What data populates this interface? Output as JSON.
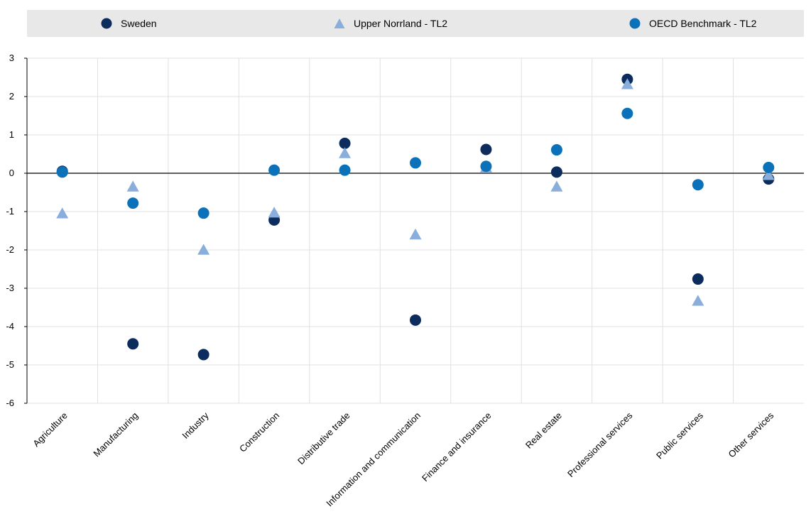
{
  "colors": {
    "sweden": "#0c2c5e",
    "upper_norrland": "#8aaedb",
    "oecd": "#0b72ba",
    "grid": "#e0e0e0",
    "legend_bg": "#e8e8e8"
  },
  "legend": {
    "items": [
      {
        "label": "Sweden",
        "marker": "circle"
      },
      {
        "label": "Upper Norrland - TL2",
        "marker": "triangle"
      },
      {
        "label": "OECD Benchmark - TL2",
        "marker": "circle"
      }
    ],
    "placement": "top"
  },
  "chart_data": {
    "type": "scatter",
    "categories": [
      "Agriculture",
      "Manufacturing",
      "Industry",
      "Construction",
      "Distributive trade",
      "Information and communication",
      "Finance and insurance",
      "Real estate",
      "Professional services",
      "Public services",
      "Other services"
    ],
    "ylim": [
      -6,
      3
    ],
    "yticks": [
      3,
      2,
      1,
      0,
      -1,
      -2,
      -3,
      -4,
      -5,
      -6
    ],
    "ytick_labels": [
      "3",
      "2",
      "1",
      "0",
      "-1",
      "-2",
      "-3",
      "-4",
      "-5",
      "-6"
    ],
    "grid": true,
    "series": [
      {
        "name": "Sweden",
        "marker": "circle",
        "values": [
          0.05,
          -4.45,
          -4.73,
          -1.22,
          0.78,
          -3.83,
          0.62,
          0.03,
          2.45,
          -2.76,
          -0.15
        ]
      },
      {
        "name": "Upper Norrland - TL2",
        "marker": "triangle",
        "values": [
          -1.05,
          -0.35,
          -2.0,
          -1.03,
          0.52,
          -1.6,
          0.15,
          -0.35,
          2.32,
          -3.33,
          -0.05
        ]
      },
      {
        "name": "OECD Benchmark - TL2",
        "marker": "circle",
        "values": [
          0.03,
          -0.78,
          -1.04,
          0.08,
          0.08,
          0.27,
          0.18,
          0.61,
          1.56,
          -0.3,
          0.15
        ]
      }
    ]
  }
}
